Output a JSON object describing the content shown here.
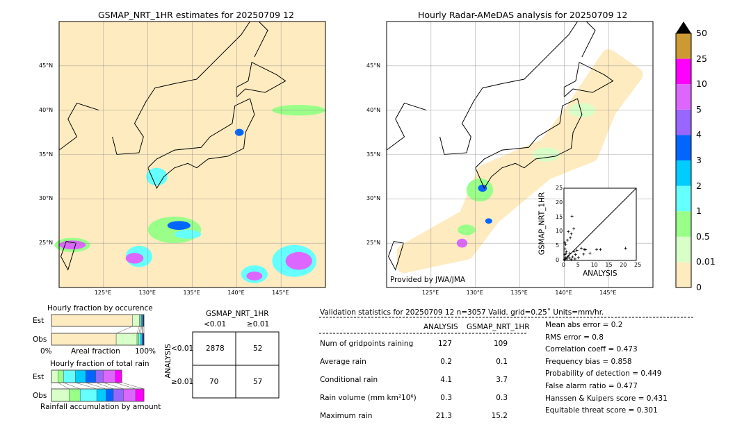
{
  "left_map": {
    "title": "GSMAP_NRT_1HR estimates for 20250709 12"
  },
  "right_map": {
    "title": "Hourly Radar-AMeDAS analysis for 20250709 12",
    "credit": "Provided by JWA/JMA"
  },
  "lon_ticks": [
    "125°E",
    "130°E",
    "135°E",
    "140°E",
    "145°E"
  ],
  "lat_ticks": [
    "45°N",
    "40°N",
    "35°N",
    "30°N",
    "25°N"
  ],
  "lon_values": [
    125,
    130,
    135,
    140,
    145
  ],
  "lat_values": [
    45,
    40,
    35,
    30,
    25
  ],
  "extent": {
    "lon": [
      120,
      150
    ],
    "lat": [
      20,
      50
    ]
  },
  "colorbar": {
    "labels": [
      "0",
      "0.01",
      "0.5",
      "1",
      "2",
      "3",
      "4",
      "5",
      "10",
      "25",
      "50"
    ],
    "colors": [
      "#ffebc0",
      "#d9ffc8",
      "#99ff88",
      "#66ffff",
      "#00ccff",
      "#0066ff",
      "#9966ff",
      "#dd66ff",
      "#ff00ff",
      "#cc9933"
    ],
    "extend_color": "#000000"
  },
  "scatter": {
    "xlabel": "ANALYSIS",
    "ylabel": "GSMAP_NRT_1HR",
    "ticks": [
      "0",
      "5",
      "10",
      "15",
      "20",
      "25"
    ],
    "range": [
      0,
      25
    ],
    "points": [
      [
        0.2,
        0.3
      ],
      [
        0.5,
        1
      ],
      [
        1,
        0.5
      ],
      [
        0.3,
        2
      ],
      [
        0.8,
        3
      ],
      [
        1.5,
        1.5
      ],
      [
        2,
        0.8
      ],
      [
        0.4,
        4
      ],
      [
        0.6,
        5.5
      ],
      [
        0.3,
        6.2
      ],
      [
        1.2,
        7
      ],
      [
        2.2,
        7.8
      ],
      [
        1.5,
        10
      ],
      [
        2.5,
        9.2
      ],
      [
        2.8,
        15.3
      ],
      [
        3.4,
        11
      ],
      [
        2,
        2.5
      ],
      [
        3,
        1.2
      ],
      [
        3.5,
        3
      ],
      [
        4,
        2
      ],
      [
        4.5,
        3.5
      ],
      [
        5,
        1
      ],
      [
        6,
        4.2
      ],
      [
        7,
        3.8
      ],
      [
        7.5,
        3.7
      ],
      [
        6.8,
        2.2
      ],
      [
        9,
        2.5
      ],
      [
        11.3,
        3.8
      ],
      [
        12.6,
        3.8
      ],
      [
        21.3,
        4.2
      ],
      [
        0.1,
        0.1
      ],
      [
        1,
        1
      ],
      [
        0.7,
        2.4
      ],
      [
        2.5,
        0.3
      ],
      [
        3.8,
        0.5
      ]
    ]
  },
  "occurrence": {
    "title": "Hourly fraction by occurence",
    "est_label": "Est",
    "obs_label": "Obs",
    "xlabel": "Areal fraction",
    "x0": "0%",
    "x1": "100%",
    "est": [
      87.5,
      7.5,
      1.2,
      1.2,
      1,
      0.6,
      1
    ],
    "obs": [
      70,
      22.5,
      2,
      2,
      1.5,
      1,
      1
    ]
  },
  "total_rain": {
    "title": "Hourly fraction of total rain",
    "xlabel": "Rainfall accumulation by amount",
    "est_label": "Est",
    "obs_label": "Obs",
    "est": [
      7,
      6,
      13,
      11,
      11,
      8,
      13,
      7
    ],
    "obs": [
      19,
      12,
      18,
      10,
      8,
      11,
      13,
      9
    ],
    "colors": [
      "#d9ffc8",
      "#99ff88",
      "#66ffff",
      "#00ccff",
      "#0066ff",
      "#9966ff",
      "#dd66ff",
      "#ff00ff"
    ]
  },
  "contingency": {
    "title": "GSMAP_NRT_1HR",
    "col1": "<0.01",
    "col2": "≥0.01",
    "row_axis": "ANALYSIS",
    "row1": "<0.01",
    "row2": "≥0.01",
    "cells": [
      "2878",
      "52",
      "70",
      "57"
    ]
  },
  "validation": {
    "header": "Validation statistics for 20250709 12  n=3057 Valid. grid=0.25˚ Units=mm/hr.",
    "col_analysis": "ANALYSIS",
    "col_gsmap": "GSMAP_NRT_1HR",
    "rows": [
      {
        "label": "Num of gridpoints raining",
        "a": "127",
        "g": "109"
      },
      {
        "label": "Average rain",
        "a": "0.2",
        "g": "0.1"
      },
      {
        "label": "Conditional rain",
        "a": "4.1",
        "g": "3.7"
      },
      {
        "label": "Rain volume (mm km²10⁶)",
        "a": "0.3",
        "g": "0.3"
      },
      {
        "label": "Maximum rain",
        "a": "21.3",
        "g": "15.2"
      }
    ],
    "scores": [
      "Mean abs error =    0.2",
      "RMS error =    0.8",
      "Correlation coeff =  0.473",
      "Frequency bias =  0.858",
      "Probability of detection =  0.449",
      "False alarm ratio =  0.477",
      "Hanssen & Kuipers score =  0.431",
      "Equitable threat score =  0.301"
    ]
  }
}
